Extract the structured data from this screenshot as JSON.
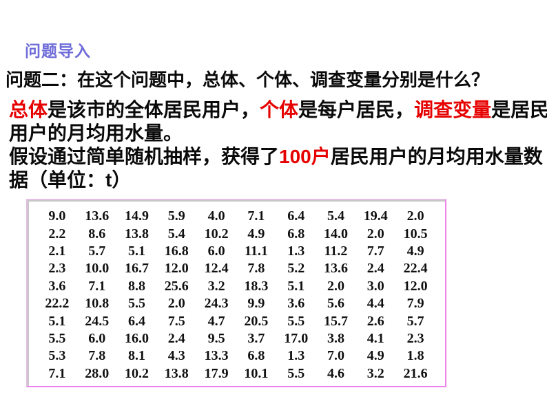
{
  "slide": {
    "intro_label": "问题导入",
    "question": "问题二：在这个问题中，总体、个体、调查变量分别是什么？"
  },
  "paragraphs": [
    {
      "lines": [
        {
          "segments": [
            {
              "text": "总体",
              "emphasis": true
            },
            {
              "text": "是该市的全体居民用户，",
              "emphasis": false
            },
            {
              "text": "个体",
              "emphasis": true
            },
            {
              "text": "是每户居民，",
              "emphasis": false
            },
            {
              "text": "调查变量",
              "emphasis": true
            },
            {
              "text": "是居民",
              "emphasis": false
            }
          ]
        },
        {
          "segments": [
            {
              "text": "用户的月均用水量。",
              "emphasis": false
            }
          ]
        }
      ]
    },
    {
      "lines": [
        {
          "segments": [
            {
              "text": "假设通过简单随机抽样，获得了",
              "emphasis": false
            },
            {
              "text": "100户",
              "emphasis": true
            },
            {
              "text": "居民用户的月均用水量数",
              "emphasis": false
            }
          ]
        },
        {
          "segments": [
            {
              "text": "据（单位：t）",
              "emphasis": false
            }
          ]
        }
      ]
    }
  ],
  "data_table": {
    "unit": "t",
    "rows": [
      [
        "9.0",
        "13.6",
        "14.9",
        "5.9",
        "4.0",
        "7.1",
        "6.4",
        "5.4",
        "19.4",
        "2.0"
      ],
      [
        "2.2",
        "8.6",
        "13.8",
        "5.4",
        "10.2",
        "4.9",
        "6.8",
        "14.0",
        "2.0",
        "10.5"
      ],
      [
        "2.1",
        "5.7",
        "5.1",
        "16.8",
        "6.0",
        "11.1",
        "1.3",
        "11.2",
        "7.7",
        "4.9"
      ],
      [
        "2.3",
        "10.0",
        "16.7",
        "12.0",
        "12.4",
        "7.8",
        "5.2",
        "13.6",
        "2.4",
        "22.4"
      ],
      [
        "3.6",
        "7.1",
        "8.8",
        "25.6",
        "3.2",
        "18.3",
        "5.1",
        "2.0",
        "3.0",
        "12.0"
      ],
      [
        "22.2",
        "10.8",
        "5.5",
        "2.0",
        "24.3",
        "9.9",
        "3.6",
        "5.6",
        "4.4",
        "7.9"
      ],
      [
        "5.1",
        "24.5",
        "6.4",
        "7.5",
        "4.7",
        "20.5",
        "5.5",
        "15.7",
        "2.6",
        "5.7"
      ],
      [
        "5.5",
        "6.0",
        "16.0",
        "2.4",
        "9.5",
        "3.7",
        "17.0",
        "3.8",
        "4.1",
        "2.3"
      ],
      [
        "5.3",
        "7.8",
        "8.1",
        "4.3",
        "13.3",
        "6.8",
        "1.3",
        "7.0",
        "4.9",
        "1.8"
      ],
      [
        "7.1",
        "28.0",
        "10.2",
        "13.8",
        "17.9",
        "10.1",
        "5.5",
        "4.6",
        "3.2",
        "21.6"
      ]
    ]
  },
  "colors": {
    "accent_purple": "#6e6cd8",
    "emphasis_red": "#e60000",
    "table_border_light": "#e3bfe3",
    "table_border_dark": "#ee82ee"
  }
}
